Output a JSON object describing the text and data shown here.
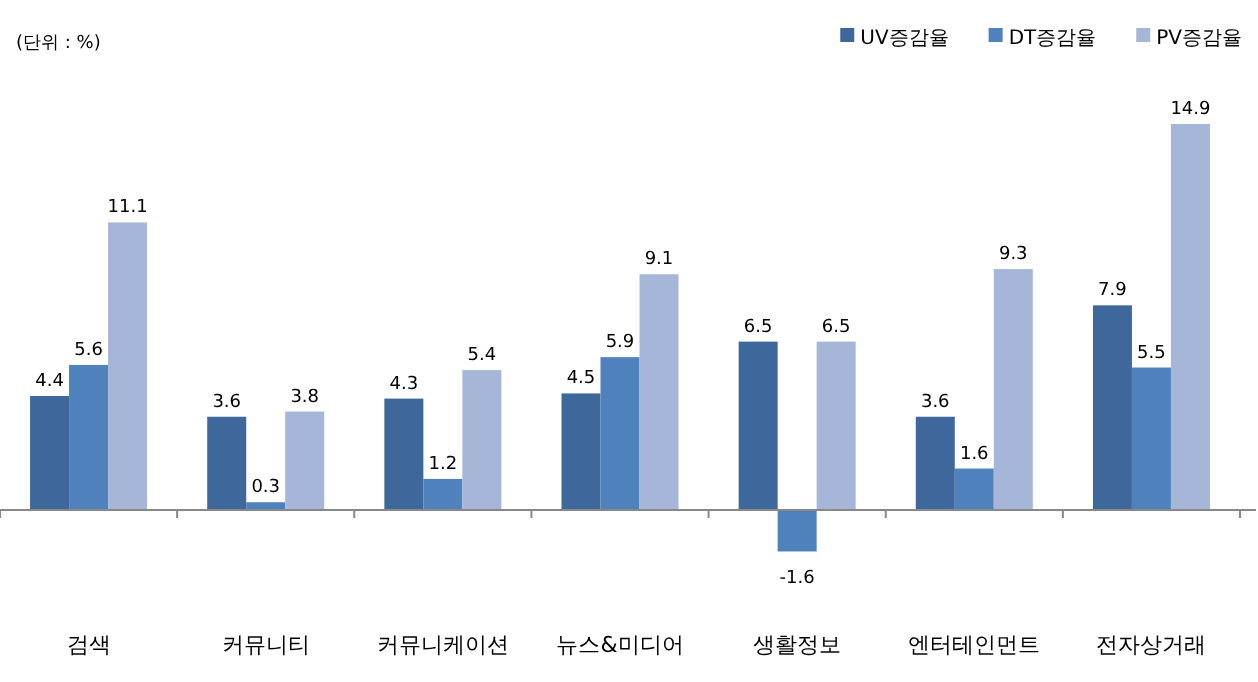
{
  "chart_data": {
    "type": "bar",
    "categories": [
      "검색",
      "커뮤니티",
      "커뮤니케이션",
      "뉴스&미디어",
      "생활정보",
      "엔터테인먼트",
      "전자상거래"
    ],
    "series": [
      {
        "name": "UV증감율",
        "color": "#3e679b",
        "values": [
          4.4,
          3.6,
          4.3,
          4.5,
          6.5,
          3.6,
          7.9
        ]
      },
      {
        "name": "DT증감율",
        "color": "#4f81bd",
        "values": [
          5.6,
          0.3,
          1.2,
          5.9,
          -1.6,
          1.6,
          5.5
        ]
      },
      {
        "name": "PV증감율",
        "color": "#a6b6d8",
        "values": [
          11.1,
          3.8,
          5.4,
          9.1,
          6.5,
          9.3,
          14.9
        ]
      }
    ],
    "data_labels": true,
    "legend": "top right",
    "annotations": [
      "(단위 : %)"
    ]
  }
}
